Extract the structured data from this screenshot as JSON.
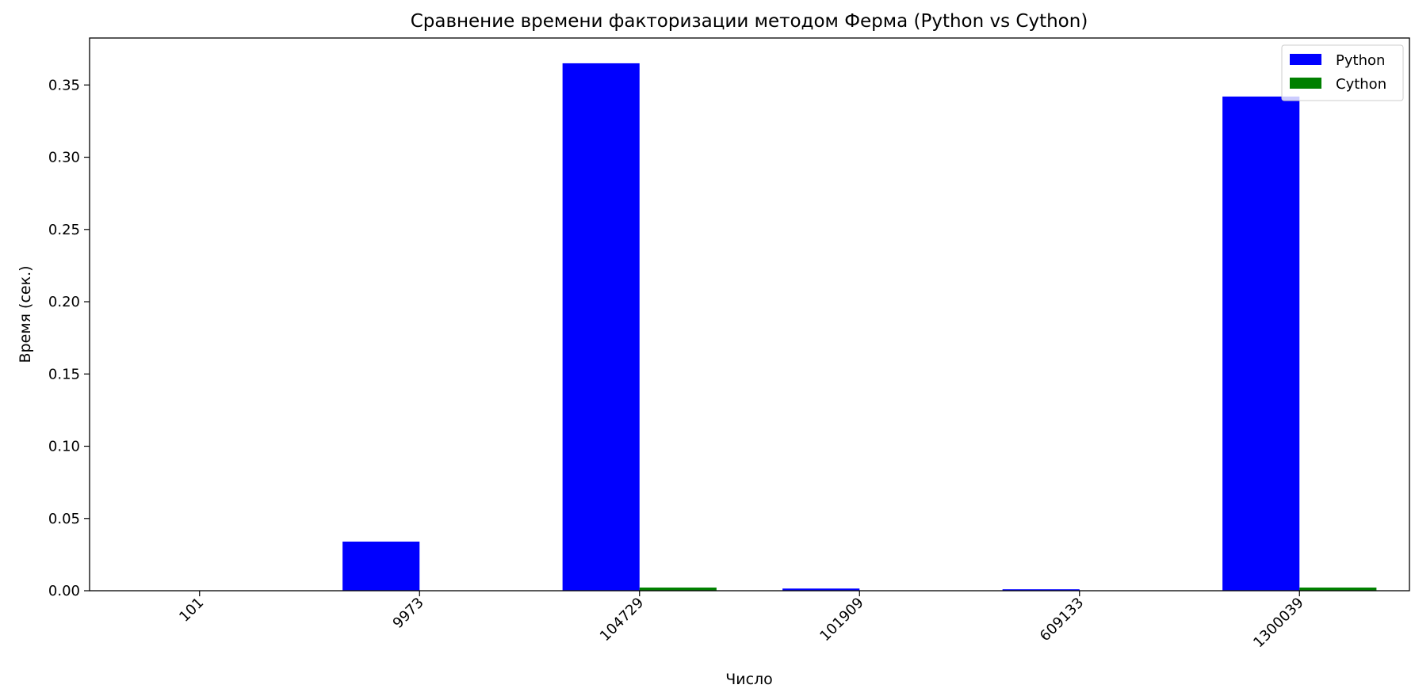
{
  "chart_data": {
    "type": "bar",
    "title": "Сравнение времени факторизации методом Ферма (Python vs Cython)",
    "xlabel": "Число",
    "ylabel": "Время (сек.)",
    "categories": [
      "101",
      "9973",
      "104729",
      "101909",
      "609133",
      "1300039"
    ],
    "series": [
      {
        "name": "Python",
        "color": "#0000ff",
        "values": [
          0.0,
          0.034,
          0.365,
          0.0015,
          0.001,
          0.342
        ]
      },
      {
        "name": "Cython",
        "color": "#008000",
        "values": [
          0.0,
          0.0,
          0.0022,
          0.0,
          0.0,
          0.0022
        ]
      }
    ],
    "ylim": [
      0,
      0.3825
    ],
    "yticks": [
      "0.00",
      "0.05",
      "0.10",
      "0.15",
      "0.20",
      "0.25",
      "0.30",
      "0.35"
    ],
    "xtick_rotation": 45,
    "grid": false,
    "legend_position": "top-right"
  }
}
